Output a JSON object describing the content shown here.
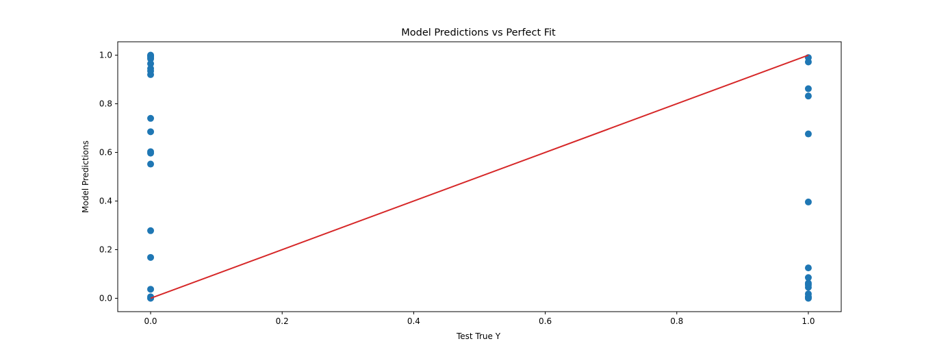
{
  "chart_data": {
    "type": "scatter",
    "title": "Model Predictions vs Perfect Fit",
    "xlabel": "Test True Y",
    "ylabel": "Model Predictions",
    "xlim": [
      -0.05,
      1.05
    ],
    "ylim": [
      -0.055,
      1.055
    ],
    "xticks": [
      0.0,
      0.2,
      0.4,
      0.6,
      0.8,
      1.0
    ],
    "xtick_labels": [
      "0.0",
      "0.2",
      "0.4",
      "0.6",
      "0.8",
      "1.0"
    ],
    "yticks": [
      0.0,
      0.2,
      0.4,
      0.6,
      0.8,
      1.0
    ],
    "ytick_labels": [
      "0.0",
      "0.2",
      "0.4",
      "0.6",
      "0.8",
      "1.0"
    ],
    "grid": false,
    "series": [
      {
        "kind": "scatter",
        "color": "#1f77b4",
        "points": [
          [
            0,
            1.0
          ],
          [
            0,
            0.998
          ],
          [
            0,
            0.995
          ],
          [
            0,
            0.99
          ],
          [
            0,
            0.985
          ],
          [
            0,
            0.965
          ],
          [
            0,
            0.945
          ],
          [
            0,
            0.935
          ],
          [
            0,
            0.92
          ],
          [
            0,
            0.74
          ],
          [
            0,
            0.685
          ],
          [
            0,
            0.603
          ],
          [
            0,
            0.597
          ],
          [
            0,
            0.552
          ],
          [
            0,
            0.278
          ],
          [
            0,
            0.168
          ],
          [
            0,
            0.037
          ],
          [
            0,
            0.006
          ],
          [
            0,
            0.001
          ],
          [
            0,
            0.0
          ],
          [
            1,
            0.99
          ],
          [
            1,
            0.972
          ],
          [
            1,
            0.862
          ],
          [
            1,
            0.832
          ],
          [
            1,
            0.676
          ],
          [
            1,
            0.396
          ],
          [
            1,
            0.125
          ],
          [
            1,
            0.085
          ],
          [
            1,
            0.062
          ],
          [
            1,
            0.055
          ],
          [
            1,
            0.045
          ],
          [
            1,
            0.018
          ],
          [
            1,
            0.006
          ],
          [
            1,
            0.002
          ],
          [
            1,
            0.0
          ]
        ]
      },
      {
        "kind": "line",
        "color": "#d62728",
        "points": [
          [
            0,
            0
          ],
          [
            1,
            1
          ]
        ]
      }
    ]
  }
}
